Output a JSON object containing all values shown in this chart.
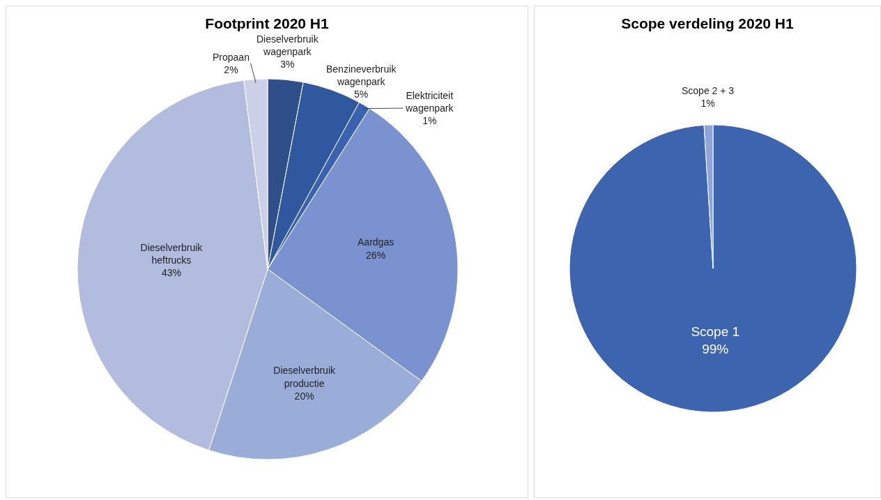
{
  "chart_data": [
    {
      "type": "pie",
      "title": "Footprint 2020 H1",
      "categories": [
        "Dieselverbruik wagenpark",
        "Benzineverbruik wagenpark",
        "Elektriciteit wagenpark",
        "Aardgas",
        "Dieselverbruik productie",
        "Dieselverbruik heftrucks",
        "Propaan"
      ],
      "values": [
        3,
        5,
        1,
        26,
        20,
        43,
        2
      ],
      "value_labels": [
        "3%",
        "5%",
        "1%",
        "26%",
        "20%",
        "43%",
        "2%"
      ],
      "colors": [
        "#2e4f8a",
        "#30589e",
        "#3a62b0",
        "#7a92d0",
        "#9aacd8",
        "#b2bcde",
        "#cbd0e8"
      ],
      "legend": false
    },
    {
      "type": "pie",
      "title": "Scope verdeling 2020 H1",
      "categories": [
        "Scope 1",
        "Scope 2 + 3"
      ],
      "values": [
        99,
        1
      ],
      "value_labels": [
        "99%",
        "1%"
      ],
      "colors": [
        "#3d64ae",
        "#8fa4d8"
      ],
      "legend": false
    }
  ]
}
